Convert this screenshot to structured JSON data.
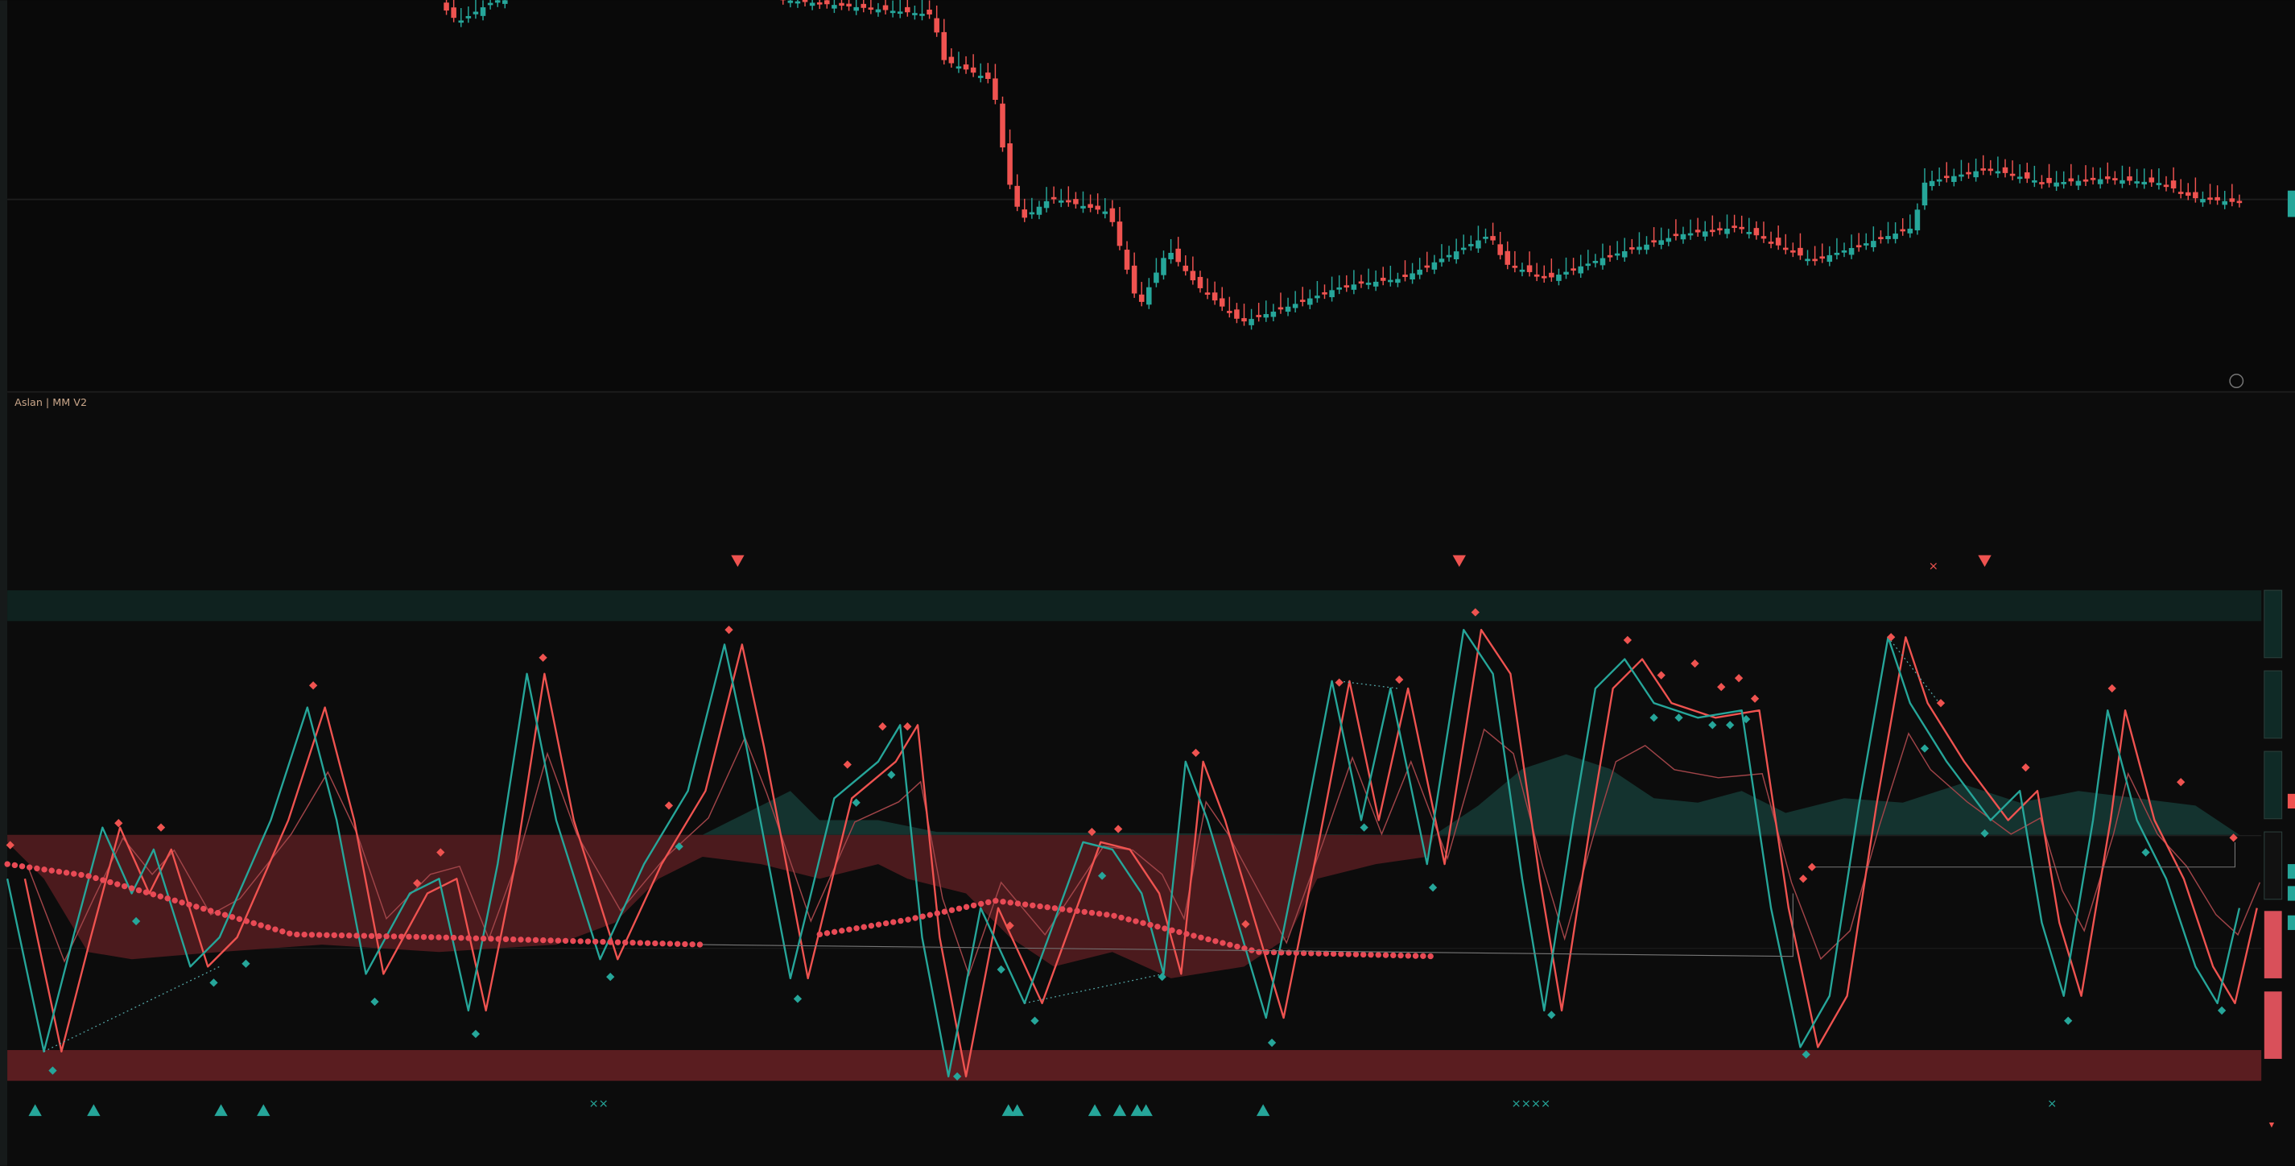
{
  "indicator": {
    "label": "Aslan | MM V2"
  }
}
